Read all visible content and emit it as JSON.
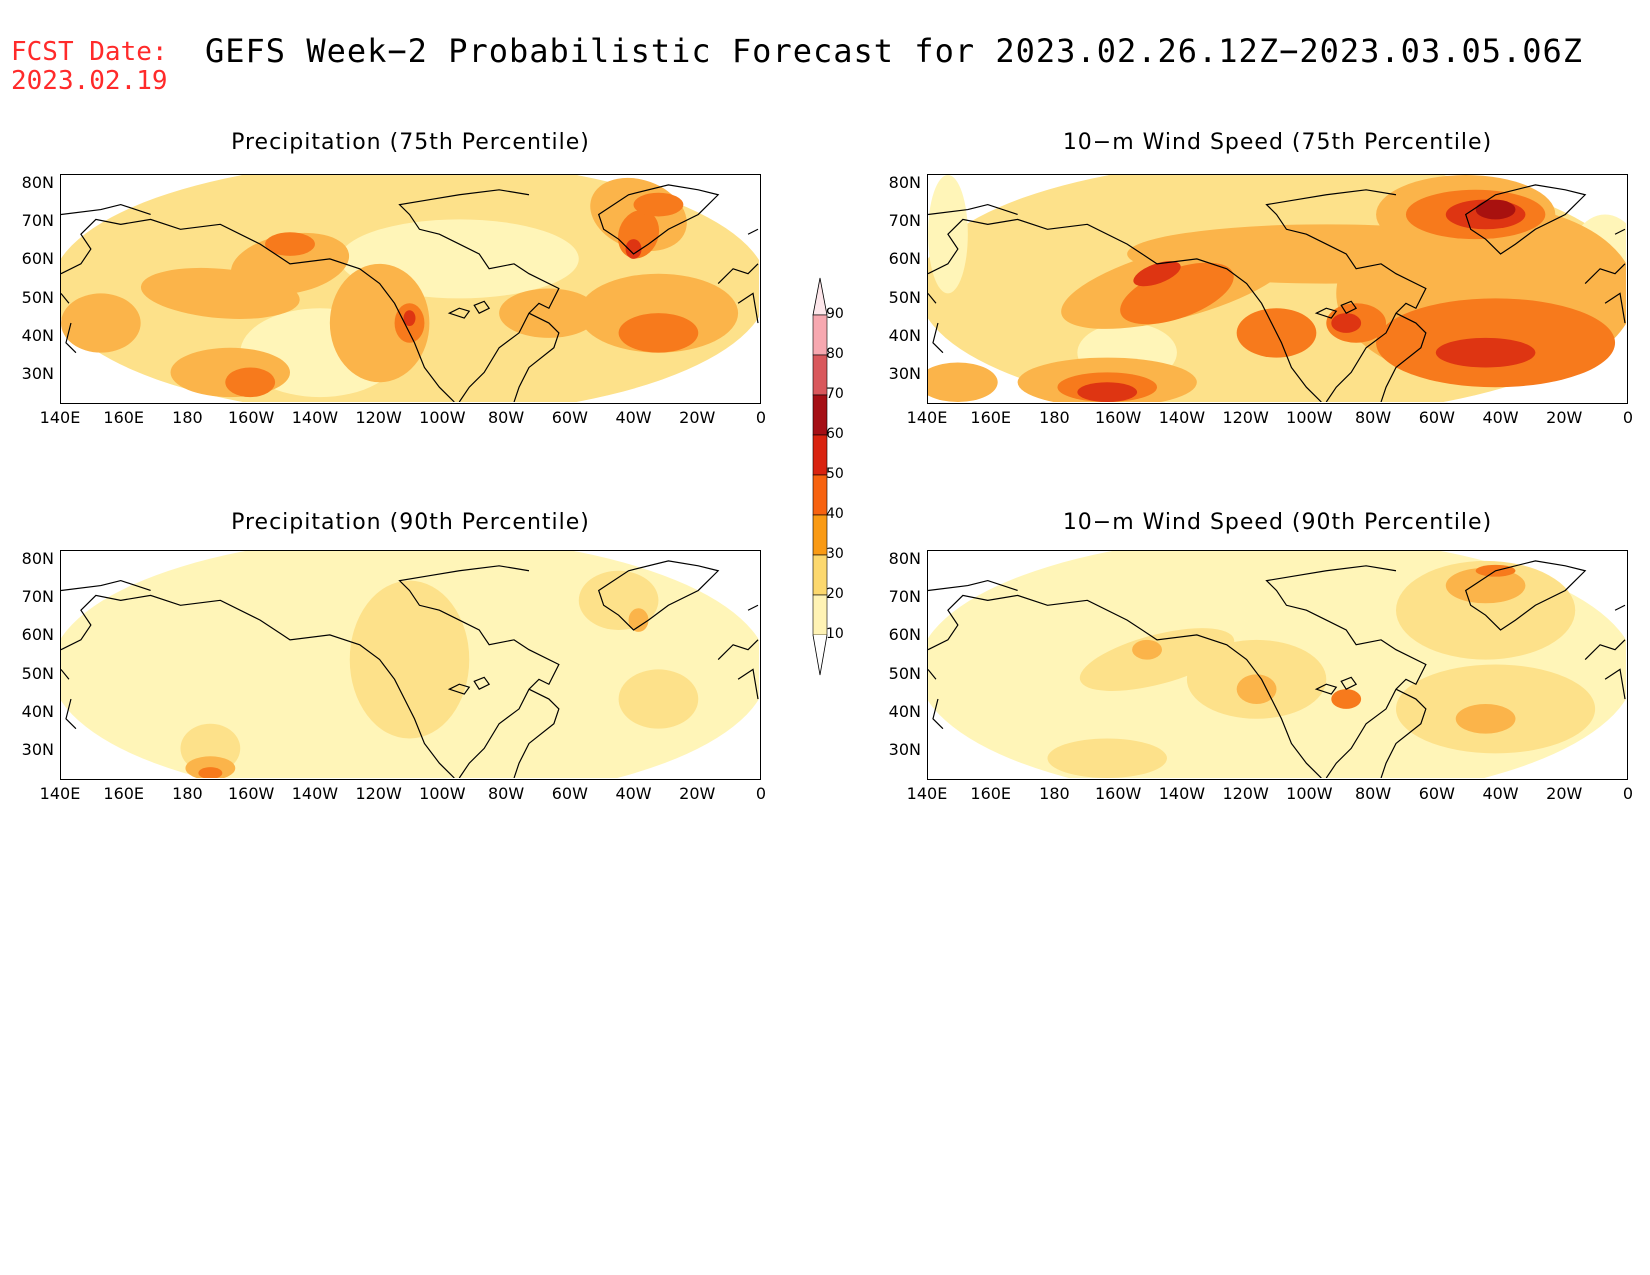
{
  "fcst": {
    "line1": "FCST Date:",
    "line2": "2023.02.19"
  },
  "title": "GEFS Week−2 Probabilistic Forecast for 2023.02.26.12Z−2023.03.05.06Z",
  "panels": [
    {
      "id": "precip75",
      "title": "Precipitation (75th Percentile)"
    },
    {
      "id": "wind75",
      "title": "10−m Wind Speed (75th Percentile)"
    },
    {
      "id": "precip90",
      "title": "Precipitation (90th Percentile)"
    },
    {
      "id": "wind90",
      "title": "10−m Wind Speed (90th Percentile)"
    }
  ],
  "lat_labels": [
    "80N",
    "70N",
    "60N",
    "50N",
    "40N",
    "30N"
  ],
  "lon_labels": [
    "140E",
    "160E",
    "180",
    "160W",
    "140W",
    "120W",
    "100W",
    "80W",
    "60W",
    "40W",
    "20W",
    "0"
  ],
  "colorbar": {
    "levels": [
      "90",
      "80",
      "70",
      "60",
      "50",
      "40",
      "30",
      "20",
      "10"
    ],
    "colors": [
      "#f7a8b0",
      "#d9585c",
      "#a50f15",
      "#d9230f",
      "#f7620f",
      "#f99a14",
      "#fcd86e",
      "#fff3b5"
    ]
  },
  "field_colors": {
    "c10": "#fff5b8",
    "c20": "#fde18a",
    "c30": "#fbb44a",
    "c40": "#f77a1c",
    "c50": "#de3512",
    "c60": "#a8110f"
  }
}
